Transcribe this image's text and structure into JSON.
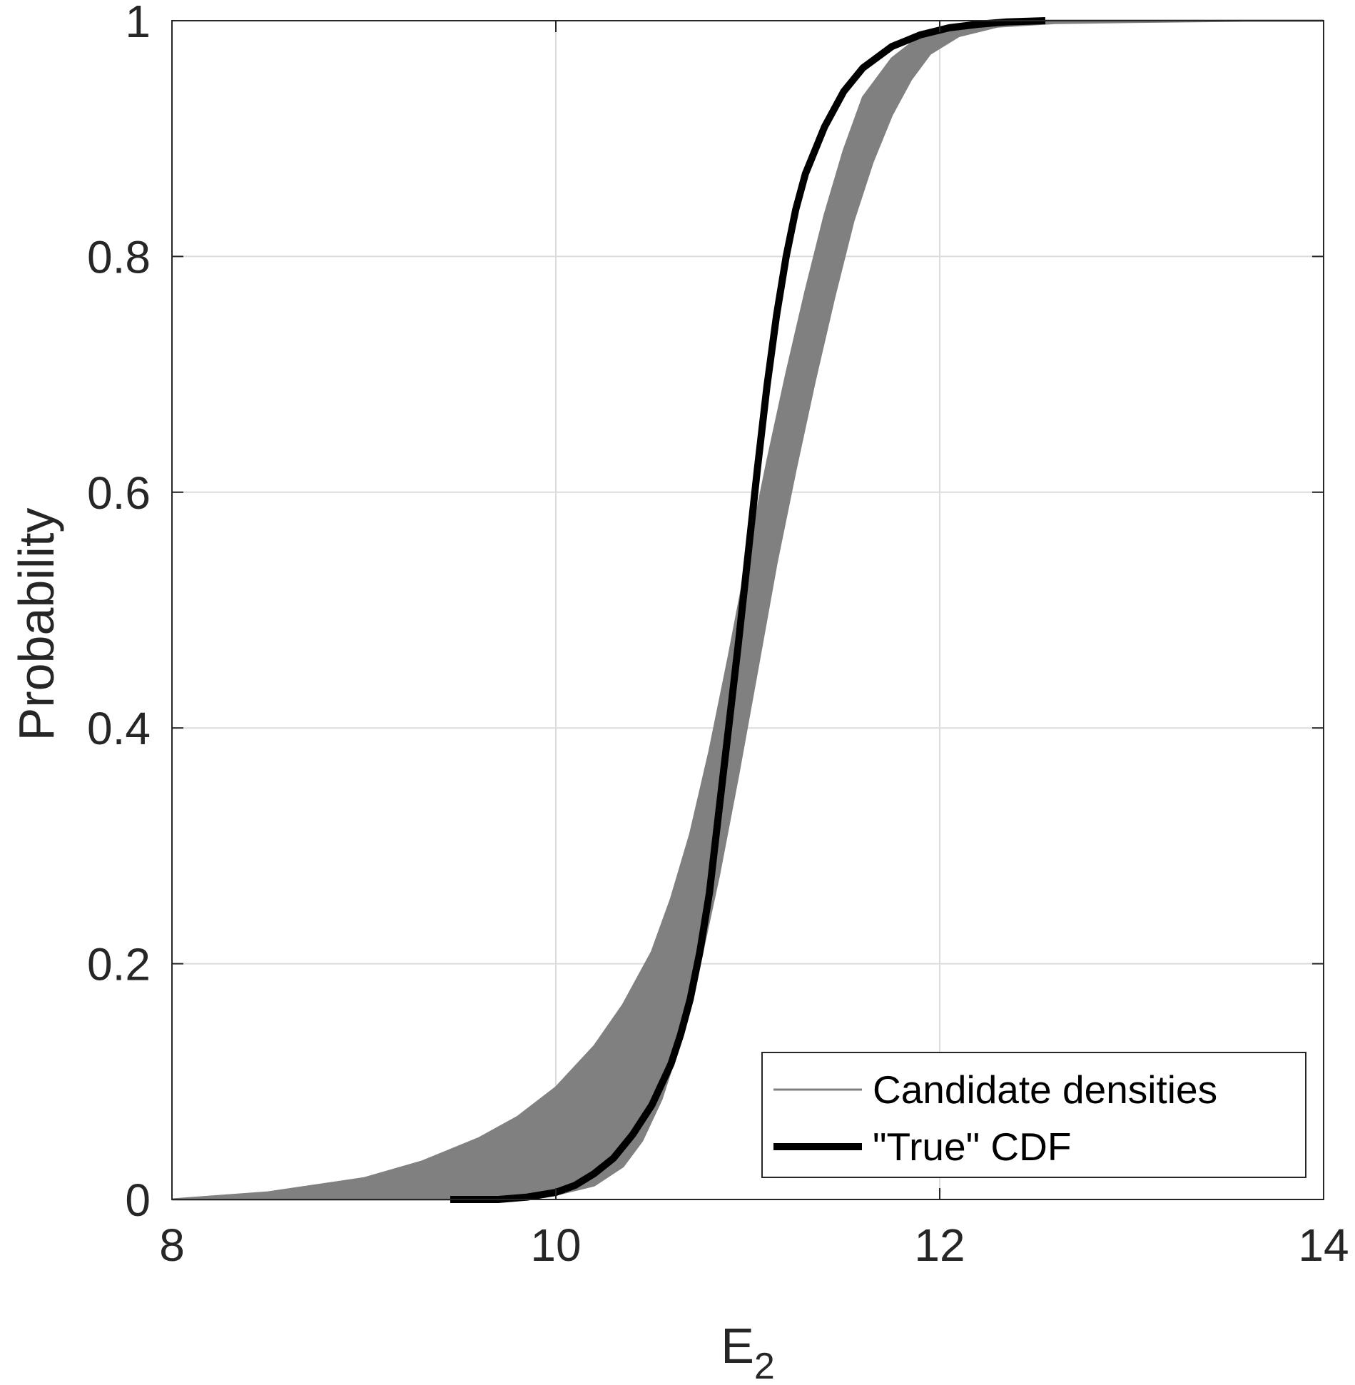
{
  "chart_data": {
    "type": "line",
    "title": "",
    "xlabel_main": "E",
    "xlabel_sub": "2",
    "ylabel": "Probability",
    "xlim": [
      8,
      14
    ],
    "ylim": [
      0,
      1
    ],
    "x_ticks": [
      "8",
      "10",
      "12",
      "14"
    ],
    "y_ticks": [
      "0",
      "0.2",
      "0.4",
      "0.6",
      "0.8",
      "1"
    ],
    "grid": true,
    "legend_position": "bottom-right",
    "colors": {
      "candidate": "#808080",
      "true_cdf": "#000000",
      "grid": "#dcdcdc",
      "axes": "#262626"
    },
    "band": {
      "name": "Candidate densities",
      "lower_edge": {
        "x": [
          8.0,
          8.5,
          9.0,
          9.3,
          9.6,
          9.8,
          10.0,
          10.2,
          10.35,
          10.5,
          10.6,
          10.7,
          10.8,
          10.9,
          11.0,
          11.1,
          11.2,
          11.3,
          11.4,
          11.5,
          11.6,
          11.75,
          11.9,
          12.05,
          12.2,
          12.4
        ],
        "y": [
          0.0,
          0.006,
          0.018,
          0.032,
          0.052,
          0.07,
          0.095,
          0.13,
          0.165,
          0.21,
          0.255,
          0.31,
          0.38,
          0.46,
          0.545,
          0.625,
          0.7,
          0.77,
          0.835,
          0.89,
          0.935,
          0.968,
          0.987,
          0.996,
          0.999,
          1.0
        ]
      },
      "upper_edge": {
        "x": [
          9.0,
          9.6,
          10.0,
          10.2,
          10.35,
          10.45,
          10.55,
          10.65,
          10.75,
          10.85,
          10.95,
          11.05,
          11.15,
          11.25,
          11.35,
          11.45,
          11.55,
          11.65,
          11.75,
          11.85,
          11.95,
          12.1,
          12.3,
          12.6,
          13.0,
          13.6,
          14.0
        ],
        "y": [
          0.0,
          0.0,
          0.004,
          0.012,
          0.028,
          0.05,
          0.085,
          0.135,
          0.2,
          0.275,
          0.36,
          0.45,
          0.54,
          0.62,
          0.695,
          0.765,
          0.83,
          0.88,
          0.92,
          0.95,
          0.972,
          0.987,
          0.995,
          0.998,
          0.999,
          1.0,
          1.0
        ]
      }
    },
    "series": [
      {
        "name": "\"True\" CDF",
        "x": [
          9.45,
          9.7,
          9.85,
          10.0,
          10.1,
          10.2,
          10.3,
          10.4,
          10.5,
          10.6,
          10.65,
          10.7,
          10.75,
          10.8,
          10.85,
          10.9,
          10.95,
          11.0,
          11.05,
          11.1,
          11.15,
          11.2,
          11.25,
          11.3,
          11.4,
          11.5,
          11.6,
          11.75,
          11.9,
          12.05,
          12.2,
          12.35,
          12.55
        ],
        "y": [
          0.0,
          0.0,
          0.002,
          0.006,
          0.012,
          0.022,
          0.035,
          0.055,
          0.08,
          0.115,
          0.14,
          0.17,
          0.21,
          0.26,
          0.33,
          0.4,
          0.47,
          0.545,
          0.62,
          0.69,
          0.75,
          0.8,
          0.84,
          0.87,
          0.91,
          0.94,
          0.96,
          0.978,
          0.988,
          0.994,
          0.997,
          0.999,
          1.0
        ]
      }
    ]
  }
}
